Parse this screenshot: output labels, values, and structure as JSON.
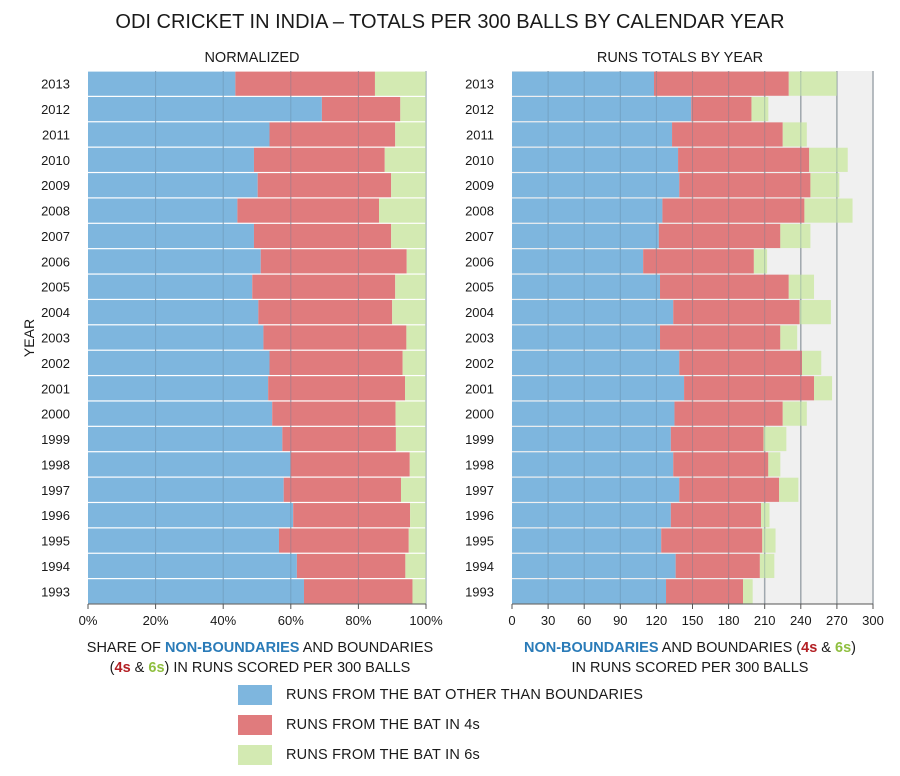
{
  "title": "ODI CRICKET IN INDIA – TOTALS PER 300 BALLS BY CALENDAR YEAR",
  "colors": {
    "non_boundaries": "#7eb6de",
    "fours": "#e07b7d",
    "sixes": "#d3eab2",
    "nb_text": "#2a7bb8",
    "fours_text": "#b32024",
    "sixes_text": "#8fbf3f"
  },
  "left_panel": {
    "subtitle": "NORMALIZED",
    "ylabel": "YEAR",
    "xlabel_parts": {
      "line1_a": "SHARE OF ",
      "line1_b": "NON-BOUNDARIES",
      "line1_c": " AND BOUNDARIES",
      "line2_a": "(",
      "line2_b": "4s",
      "line2_c": " & ",
      "line2_d": "6s",
      "line2_e": ") IN RUNS SCORED PER 300 BALLS"
    }
  },
  "right_panel": {
    "subtitle": "RUNS TOTALS BY YEAR",
    "xlabel_parts": {
      "line1_a": "NON-BOUNDARIES",
      "line1_b": " AND BOUNDARIES (",
      "line1_c": "4s",
      "line1_d": " & ",
      "line1_e": "6s",
      "line1_f": ")",
      "line2": "IN RUNS SCORED PER 300 BALLS"
    }
  },
  "legend": [
    {
      "label": "RUNS FROM THE BAT OTHER THAN BOUNDARIES",
      "color": "#7eb6de"
    },
    {
      "label": "RUNS FROM THE BAT IN 4s",
      "color": "#e07b7d"
    },
    {
      "label": "RUNS FROM THE BAT IN 6s",
      "color": "#d3eab2"
    }
  ],
  "chart_data": [
    {
      "type": "bar",
      "orientation": "horizontal",
      "stacked": true,
      "title": "NORMALIZED",
      "ylabel": "YEAR",
      "xlabel": "SHARE OF NON-BOUNDARIES AND BOUNDARIES (4s & 6s) IN RUNS SCORED PER 300 BALLS",
      "categories": [
        "2013",
        "2012",
        "2011",
        "2010",
        "2009",
        "2008",
        "2007",
        "2006",
        "2005",
        "2004",
        "2003",
        "2002",
        "2001",
        "2000",
        "1999",
        "1998",
        "1997",
        "1996",
        "1995",
        "1994",
        "1993"
      ],
      "xlim": [
        0,
        100
      ],
      "x_ticks": [
        "0%",
        "20%",
        "40%",
        "60%",
        "80%",
        "100%"
      ],
      "series": [
        {
          "name": "RUNS FROM THE BAT OTHER THAN BOUNDARIES",
          "values": [
            43.6,
            69.2,
            53.7,
            49.1,
            50.2,
            44.2,
            49.1,
            51.1,
            48.6,
            50.4,
            51.9,
            53.7,
            53.3,
            54.5,
            57.5,
            59.9,
            57.9,
            60.7,
            56.5,
            61.8,
            63.9
          ]
        },
        {
          "name": "RUNS FROM THE BAT IN 4s",
          "values": [
            41.3,
            23.2,
            37.2,
            38.7,
            39.5,
            41.9,
            40.6,
            43.2,
            42.3,
            39.6,
            42.3,
            39.4,
            40.5,
            36.5,
            33.6,
            35.3,
            34.7,
            34.6,
            38.4,
            32.1,
            32.1
          ]
        },
        {
          "name": "RUNS FROM THE BAT IN 6s",
          "values": [
            15.1,
            7.6,
            9.1,
            12.2,
            10.3,
            13.9,
            10.3,
            5.7,
            9.1,
            10.0,
            5.8,
            6.9,
            6.2,
            9.0,
            8.9,
            4.8,
            7.4,
            4.7,
            5.1,
            6.1,
            4.0
          ]
        }
      ],
      "grid": true
    },
    {
      "type": "bar",
      "orientation": "horizontal",
      "stacked": true,
      "title": "RUNS TOTALS BY YEAR",
      "xlabel": "NON-BOUNDARIES AND BOUNDARIES (4s & 6s) IN RUNS SCORED PER 300 BALLS",
      "categories": [
        "2013",
        "2012",
        "2011",
        "2010",
        "2009",
        "2008",
        "2007",
        "2006",
        "2005",
        "2004",
        "2003",
        "2002",
        "2001",
        "2000",
        "1999",
        "1998",
        "1997",
        "1996",
        "1995",
        "1994",
        "1993"
      ],
      "xlim": [
        0,
        300
      ],
      "x_ticks": [
        "0",
        "30",
        "60",
        "90",
        "120",
        "150",
        "180",
        "210",
        "240",
        "270",
        "300"
      ],
      "series": [
        {
          "name": "RUNS FROM THE BAT OTHER THAN BOUNDARIES",
          "values": [
            118,
            149,
            133,
            138,
            139,
            125,
            122,
            109,
            123,
            134,
            123,
            139,
            143,
            135,
            132,
            134,
            139,
            132,
            124,
            136,
            128
          ]
        },
        {
          "name": "RUNS FROM THE BAT IN 4s",
          "values": [
            112,
            50,
            92,
            109,
            109,
            118,
            101,
            92,
            107,
            105,
            100,
            102,
            108,
            90,
            77,
            79,
            83,
            75,
            84,
            70,
            64
          ]
        },
        {
          "name": "RUNS FROM THE BAT IN 6s",
          "values": [
            40,
            14,
            20,
            32,
            24,
            40,
            25,
            11,
            21,
            26,
            14,
            16,
            15,
            20,
            19,
            10,
            16,
            7,
            11,
            12,
            8
          ]
        }
      ],
      "grid": true
    }
  ]
}
